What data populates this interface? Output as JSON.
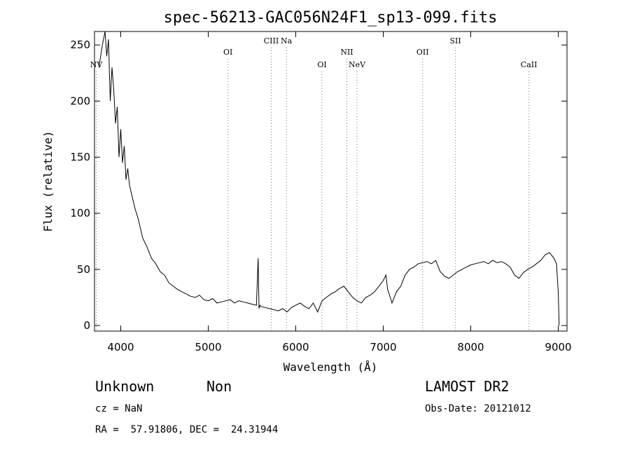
{
  "chart_data": {
    "type": "line",
    "title": "spec-56213-GAC056N24F1_sp13-099.fits",
    "xlabel": "Wavelength (Å)",
    "ylabel": "Flux (relative)",
    "xlim": [
      3700,
      9100
    ],
    "ylim": [
      -5,
      262
    ],
    "xticks": [
      4000,
      5000,
      6000,
      7000,
      8000,
      9000
    ],
    "yticks": [
      0,
      50,
      100,
      150,
      200,
      250
    ],
    "grid": false,
    "lines": [
      {
        "label": "NV",
        "wavelength": 3720,
        "row": 2
      },
      {
        "label": "OI",
        "wavelength": 5225,
        "row": 1
      },
      {
        "label": "CIII",
        "wavelength": 5720,
        "row": 0
      },
      {
        "label": "Na",
        "wavelength": 5893,
        "row": 0
      },
      {
        "label": "OI",
        "wavelength": 6300,
        "row": 2
      },
      {
        "label": "NII",
        "wavelength": 6584,
        "row": 1
      },
      {
        "label": "NeV",
        "wavelength": 6700,
        "row": 2
      },
      {
        "label": "OII",
        "wavelength": 7450,
        "row": 1
      },
      {
        "label": "SII",
        "wavelength": 7825,
        "row": 0
      },
      {
        "label": "CaII",
        "wavelength": 8665,
        "row": 2
      }
    ],
    "series": [
      {
        "x": [
          3750,
          3790,
          3820,
          3840,
          3860,
          3880,
          3900,
          3920,
          3940,
          3960,
          3980,
          4000,
          4020,
          4040,
          4060,
          4080,
          4100,
          4130,
          4160,
          4200,
          4250,
          4300,
          4350,
          4400,
          4450,
          4500,
          4550,
          4600,
          4650,
          4700,
          4750,
          4800,
          4850,
          4900,
          4950,
          5000,
          5050,
          5100,
          5150,
          5200,
          5250,
          5300,
          5350,
          5400,
          5450,
          5500,
          5550,
          5570,
          5580,
          5590,
          5600,
          5650,
          5700,
          5750,
          5800,
          5850,
          5900,
          5950,
          6000,
          6050,
          6100,
          6150,
          6200,
          6250,
          6300,
          6350,
          6400,
          6450,
          6500,
          6550,
          6600,
          6650,
          6700,
          6750,
          6800,
          6850,
          6900,
          6950,
          7000,
          7030,
          7050,
          7080,
          7100,
          7150,
          7200,
          7250,
          7300,
          7350,
          7400,
          7450,
          7500,
          7550,
          7600,
          7650,
          7700,
          7750,
          7800,
          7850,
          7900,
          7950,
          8000,
          8050,
          8100,
          8150,
          8200,
          8250,
          8300,
          8350,
          8400,
          8450,
          8500,
          8550,
          8600,
          8650,
          8700,
          8750,
          8800,
          8850,
          8900,
          8950,
          8980,
          9000,
          9010
        ],
        "y": [
          230,
          250,
          262,
          240,
          255,
          200,
          230,
          210,
          180,
          195,
          150,
          175,
          145,
          160,
          130,
          140,
          125,
          115,
          105,
          95,
          78,
          70,
          60,
          55,
          48,
          45,
          38,
          35,
          32,
          30,
          28,
          26,
          25,
          27,
          23,
          22,
          24,
          20,
          21,
          22,
          23,
          20,
          22,
          21,
          20,
          19,
          18,
          60,
          15,
          18,
          17,
          16,
          15,
          14,
          13,
          15,
          12,
          16,
          18,
          20,
          17,
          15,
          20,
          12,
          22,
          25,
          28,
          30,
          33,
          35,
          30,
          25,
          22,
          20,
          25,
          27,
          30,
          35,
          40,
          45,
          32,
          25,
          20,
          30,
          35,
          45,
          50,
          52,
          55,
          56,
          57,
          55,
          58,
          48,
          44,
          42,
          45,
          48,
          50,
          52,
          54,
          55,
          56,
          57,
          55,
          58,
          56,
          57,
          55,
          52,
          45,
          42,
          47,
          50,
          52,
          55,
          58,
          63,
          65,
          60,
          55,
          30,
          0
        ]
      }
    ]
  },
  "footer": {
    "classification": "Unknown",
    "subclass": "Non",
    "survey": "LAMOST DR2",
    "cz": "cz = NaN",
    "obs_date": "Obs-Date: 20121012",
    "coords": "RA =  57.91806, DEC =  24.31944"
  }
}
